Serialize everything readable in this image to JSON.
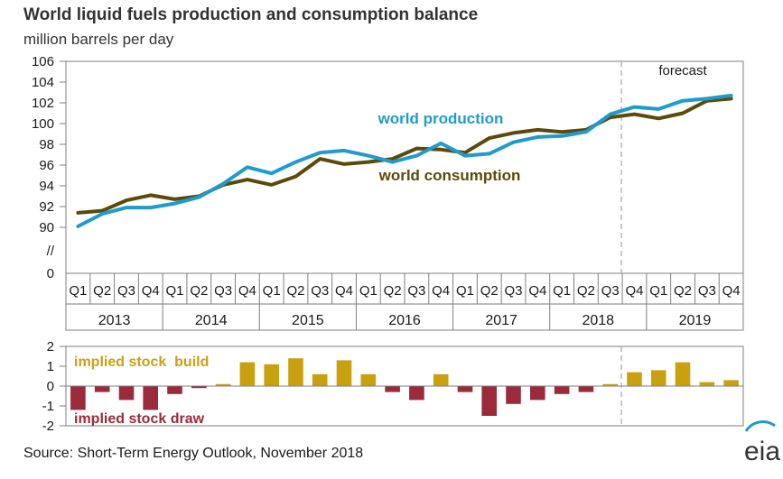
{
  "title": "World liquid fuels production and consumption balance",
  "subtitle": "million barrels per day",
  "source": "Source: Short-Term Energy Outlook, November 2018",
  "logo": "eia",
  "colors": {
    "production": "#1f9bcc",
    "consumption": "#5c4a0a",
    "build": "#c9a110",
    "draw": "#9b2a3b",
    "axis": "#7f7f7f",
    "forecast_line": "#a6a6a6"
  },
  "chart_data": [
    {
      "type": "line",
      "title": "World liquid fuels production and consumption balance",
      "ylabel": "million barrels per day",
      "ylim": [
        88,
        106
      ],
      "yticks": [
        "106",
        "104",
        "102",
        "100",
        "98",
        "96",
        "94",
        "92",
        "90"
      ],
      "y_break_label": "//",
      "y_zero_label": "0",
      "quarters": [
        "Q1",
        "Q2",
        "Q3",
        "Q4",
        "Q1",
        "Q2",
        "Q3",
        "Q4",
        "Q1",
        "Q2",
        "Q3",
        "Q4",
        "Q1",
        "Q2",
        "Q3",
        "Q4",
        "Q1",
        "Q2",
        "Q3",
        "Q4",
        "Q1",
        "Q2",
        "Q3",
        "Q4",
        "Q1",
        "Q2",
        "Q3",
        "Q4"
      ],
      "years": [
        "2013",
        "2014",
        "2015",
        "2016",
        "2017",
        "2018",
        "2019"
      ],
      "forecast_label": "forecast",
      "forecast_start_index": 23,
      "series": [
        {
          "name": "world production",
          "values": [
            90.1,
            91.3,
            91.9,
            91.9,
            92.3,
            92.9,
            94.2,
            95.8,
            95.2,
            96.3,
            97.2,
            97.4,
            96.9,
            96.3,
            96.9,
            98.1,
            96.9,
            97.1,
            98.2,
            98.7,
            98.8,
            99.2,
            100.9,
            101.6,
            101.4,
            102.2,
            102.4,
            102.7
          ]
        },
        {
          "name": "world consumption",
          "values": [
            91.4,
            91.6,
            92.6,
            93.1,
            92.7,
            93.0,
            94.1,
            94.6,
            94.1,
            94.9,
            96.6,
            96.1,
            96.3,
            96.6,
            97.6,
            97.5,
            97.2,
            98.6,
            99.1,
            99.4,
            99.2,
            99.4,
            100.6,
            100.9,
            100.5,
            101.0,
            102.2,
            102.4
          ]
        }
      ]
    },
    {
      "type": "bar",
      "ylim": [
        -2,
        2
      ],
      "yticks": [
        "2",
        "1",
        "0",
        "-1",
        "-2"
      ],
      "annotations": [
        "implied stock  build",
        "implied stock draw"
      ],
      "values": [
        -1.2,
        -0.3,
        -0.7,
        -1.2,
        -0.4,
        -0.1,
        0.1,
        1.2,
        1.1,
        1.4,
        0.6,
        1.3,
        0.6,
        -0.3,
        -0.7,
        0.6,
        -0.3,
        -1.5,
        -0.9,
        -0.7,
        -0.4,
        -0.3,
        0.1,
        0.7,
        0.8,
        1.2,
        0.2,
        0.3
      ]
    }
  ]
}
